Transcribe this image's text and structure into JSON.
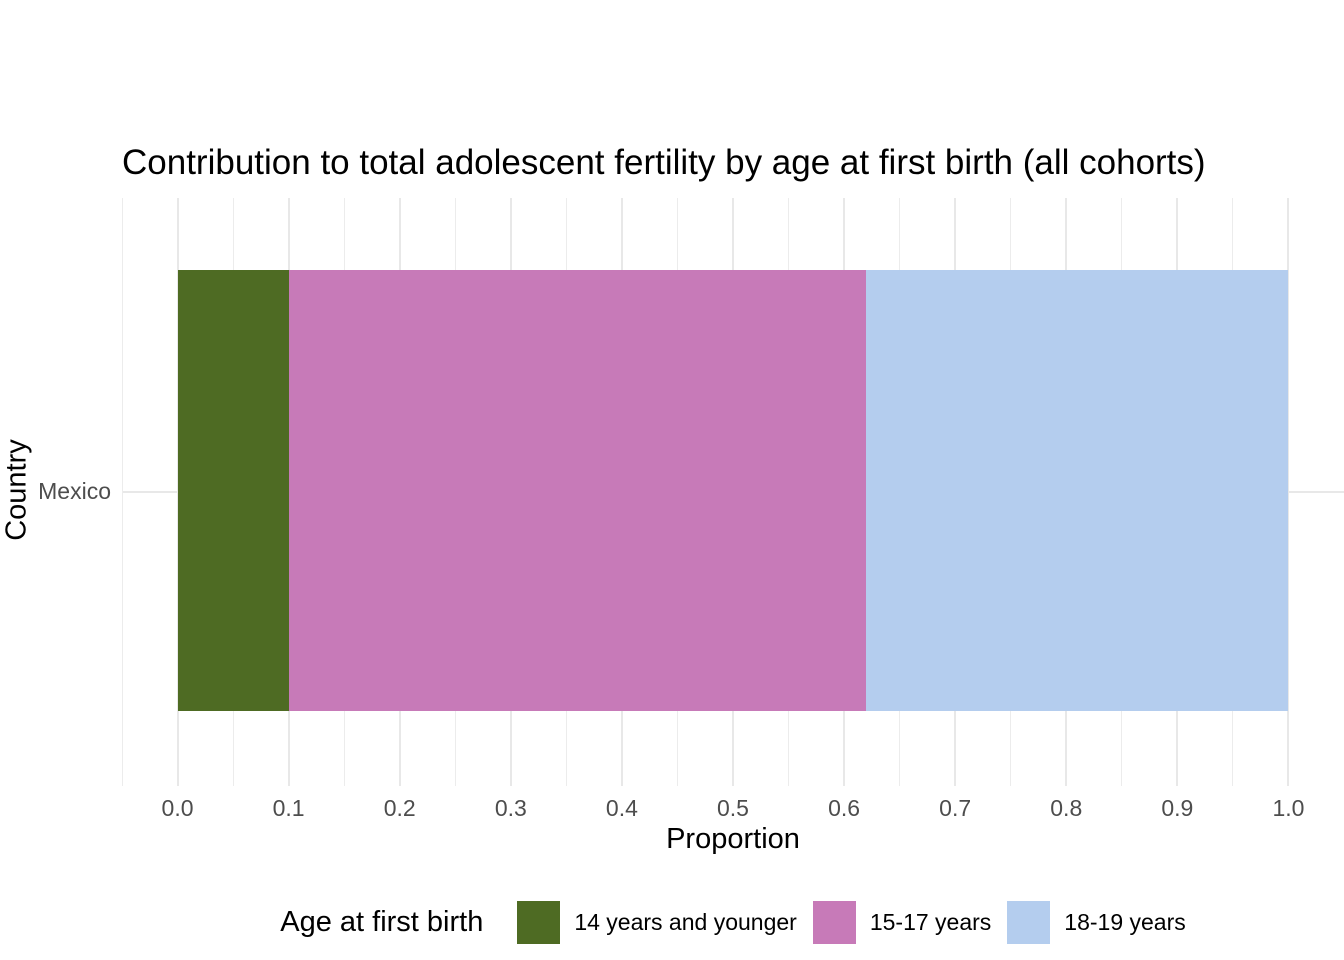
{
  "chart_data": {
    "type": "bar",
    "orientation": "horizontal",
    "stacked": true,
    "title": "Contribution to total adolescent fertility by age at first birth (all cohorts)",
    "xlabel": "Proportion",
    "ylabel": "Country",
    "categories": [
      "Mexico"
    ],
    "xlim": [
      0,
      1
    ],
    "x_ticks": [
      0,
      0.1,
      0.2,
      0.3,
      0.4,
      0.5,
      0.6,
      0.7,
      0.8,
      0.9,
      1.0
    ],
    "x_tick_labels": [
      "0.0",
      "0.1",
      "0.2",
      "0.3",
      "0.4",
      "0.5",
      "0.6",
      "0.7",
      "0.8",
      "0.9",
      "1.0"
    ],
    "grid": {
      "vertical_major": true,
      "vertical_minor": true,
      "horizontal_major": true
    },
    "legend": {
      "title": "Age at first birth",
      "position": "bottom"
    },
    "series": [
      {
        "name": "14 years and younger",
        "values": [
          0.1
        ],
        "color": "#4e6b23"
      },
      {
        "name": "15-17 years",
        "values": [
          0.52
        ],
        "color": "#c77ab8"
      },
      {
        "name": "18-19 years",
        "values": [
          0.38
        ],
        "color": "#b4cdee"
      }
    ]
  },
  "colors": {
    "gridline": "#e8e8e8",
    "gridline_minor": "#ececec",
    "axis_text": "#4d4d4d",
    "text": "#000000",
    "background": "#ffffff"
  }
}
